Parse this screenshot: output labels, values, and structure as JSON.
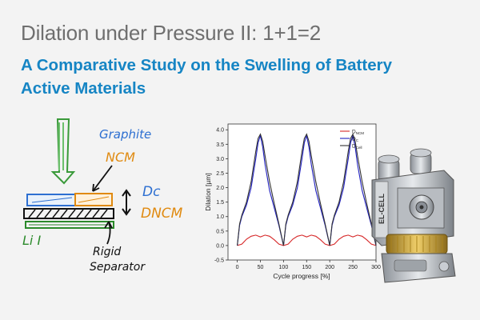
{
  "header": {
    "title": "Dilation under Pressure II: 1+1=2",
    "subtitle_line1": "A Comparative Study on the Swelling of Battery",
    "subtitle_line2": "Active Materials"
  },
  "sketch": {
    "label_graphite": "Graphite",
    "label_ncm": "NCM",
    "label_dc": "Dc",
    "label_dncm": "DNCM",
    "label_li": "Li I",
    "label_rigid": "Rigid",
    "label_separator": "Separator"
  },
  "device": {
    "brand_text": "EL-CELL"
  },
  "chart_data": {
    "type": "line",
    "xlabel": "Cycle progress [%]",
    "ylabel": "Dilation [µm]",
    "xlim": [
      -20,
      300
    ],
    "ylim": [
      -0.5,
      4.2
    ],
    "xticks": [
      "0",
      "50",
      "100",
      "150",
      "200",
      "250",
      "300"
    ],
    "yticks": [
      "-0.5",
      "0.0",
      "0.5",
      "1.0",
      "1.5",
      "2.0",
      "2.5",
      "3.0",
      "3.5",
      "4.0"
    ],
    "legend_position": "top-right",
    "series": [
      {
        "name": "D_NCM",
        "name_main": "D",
        "name_sub": "NCM",
        "color": "#d62728",
        "x": [
          0,
          10,
          20,
          30,
          40,
          50,
          60,
          70,
          80,
          90,
          100,
          110,
          120,
          130,
          140,
          150,
          160,
          170,
          180,
          190,
          200,
          210,
          220,
          230,
          240,
          250,
          260,
          270,
          280,
          290,
          300
        ],
        "y": [
          0,
          0.05,
          0.22,
          0.32,
          0.36,
          0.3,
          0.36,
          0.32,
          0.2,
          0.05,
          0,
          0.05,
          0.22,
          0.32,
          0.36,
          0.3,
          0.36,
          0.32,
          0.2,
          0.05,
          0,
          0.05,
          0.22,
          0.32,
          0.36,
          0.3,
          0.36,
          0.32,
          0.2,
          0.05,
          0
        ]
      },
      {
        "name": "D_C",
        "name_main": "D",
        "name_sub": "C",
        "color": "#1f1fbf",
        "x": [
          0,
          5,
          10,
          20,
          30,
          40,
          45,
          50,
          55,
          60,
          70,
          80,
          90,
          100,
          105,
          110,
          120,
          130,
          140,
          145,
          150,
          155,
          160,
          170,
          180,
          190,
          200,
          205,
          210,
          220,
          230,
          240,
          245,
          250,
          255,
          260,
          270,
          280,
          290,
          300
        ],
        "y": [
          0,
          0.7,
          1.0,
          1.4,
          2.0,
          3.0,
          3.55,
          3.8,
          3.4,
          2.8,
          1.9,
          1.3,
          0.7,
          0,
          0.7,
          1.0,
          1.4,
          2.0,
          3.0,
          3.55,
          3.8,
          3.4,
          2.8,
          1.9,
          1.3,
          0.7,
          0,
          0.7,
          1.0,
          1.4,
          2.0,
          3.0,
          3.55,
          3.8,
          3.4,
          2.8,
          1.9,
          1.3,
          0.7,
          0
        ]
      },
      {
        "name": "D_Cell",
        "name_main": "D",
        "name_sub": "Cell",
        "color": "#333333",
        "x": [
          0,
          5,
          10,
          20,
          30,
          40,
          45,
          50,
          55,
          60,
          70,
          80,
          90,
          100,
          105,
          110,
          120,
          130,
          140,
          145,
          150,
          155,
          160,
          170,
          180,
          190,
          200,
          205,
          210,
          220,
          230,
          240,
          245,
          250,
          255,
          260,
          270,
          280,
          290,
          300
        ],
        "y": [
          0,
          0.75,
          1.05,
          1.5,
          2.2,
          3.25,
          3.7,
          3.85,
          3.6,
          3.1,
          2.2,
          1.45,
          0.75,
          0,
          0.75,
          1.05,
          1.5,
          2.2,
          3.25,
          3.7,
          3.85,
          3.6,
          3.1,
          2.2,
          1.45,
          0.75,
          0,
          0.75,
          1.05,
          1.5,
          2.2,
          3.25,
          3.7,
          3.85,
          3.6,
          3.1,
          2.2,
          1.45,
          0.75,
          0
        ]
      }
    ]
  }
}
